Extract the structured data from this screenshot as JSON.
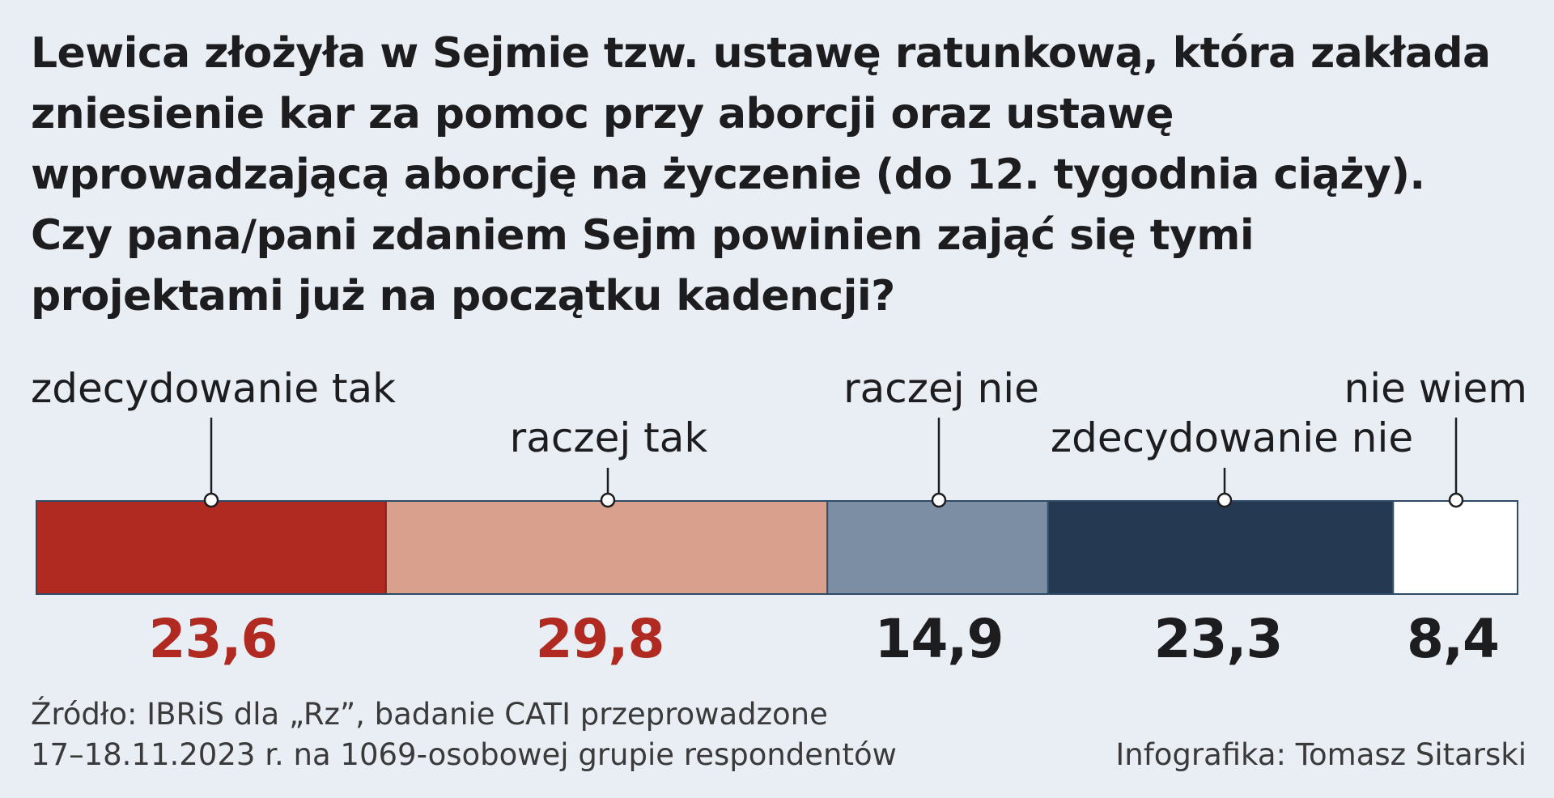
{
  "title_lines": [
    "Lewica złożyła w Sejmie tzw. ustawę ratunkową, która zakłada",
    "zniesienie kar za pomoc przy aborcji oraz ustawę",
    "wprowadzającą aborcję na życzenie (do 12. tygodnia ciąży).",
    "Czy pana/pani zdaniem Sejm powinien zająć się tymi",
    "projektami już na początku kadencji?"
  ],
  "chart_data": {
    "type": "bar",
    "orientation": "horizontal-stacked",
    "unit": "%",
    "total": 100,
    "categories": [
      "zdecydowanie tak",
      "raczej tak",
      "raczej nie",
      "zdecydowanie nie",
      "nie wiem"
    ],
    "values": [
      23.6,
      29.8,
      14.9,
      23.3,
      8.4
    ],
    "value_labels": [
      "23,6",
      "29,8",
      "14,9",
      "23,3",
      "8,4"
    ],
    "colors": [
      "#b02a22",
      "#d8a08d",
      "#7b8ea3",
      "#253a52",
      "#ffffff"
    ],
    "value_label_colors": [
      "#b02a22",
      "#b02a22",
      "#1d1d1f",
      "#1d1d1f",
      "#1d1d1f"
    ],
    "label_rows": [
      "upper",
      "lower",
      "upper",
      "lower",
      "upper"
    ],
    "bar_outline_color": "#2e4a66"
  },
  "footer": {
    "source_line1": "Źródło: IBRiS dla „Rz”, badanie CATI przeprowadzone",
    "source_line2": "17–18.11.2023 r. na 1069-osobowej grupie respondentów",
    "credit": "Infografika: Tomasz Sitarski"
  }
}
